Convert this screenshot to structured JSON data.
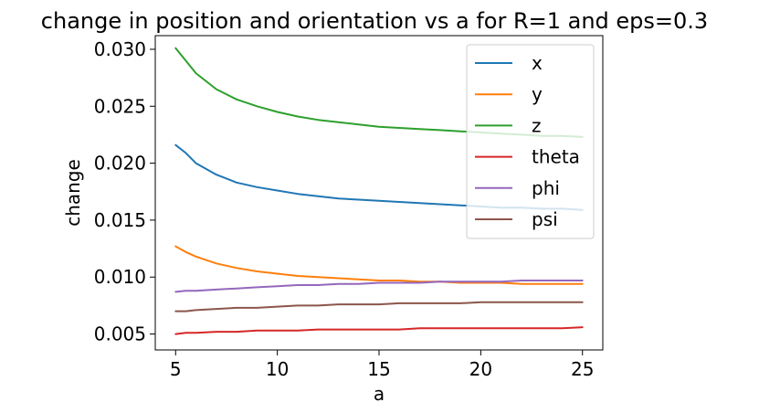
{
  "chart_data": {
    "type": "line",
    "title": "change in position and orientation vs a for R=1 and eps=0.3",
    "xlabel": "a",
    "ylabel": "change",
    "xlim": [
      4.0,
      26.0
    ],
    "ylim": [
      0.0036,
      0.0312
    ],
    "xticks": [
      5,
      10,
      15,
      20,
      25
    ],
    "xtick_labels": [
      "5",
      "10",
      "15",
      "20",
      "25"
    ],
    "yticks": [
      0.005,
      0.01,
      0.015,
      0.02,
      0.025,
      0.03
    ],
    "ytick_labels": [
      "0.005",
      "0.010",
      "0.015",
      "0.020",
      "0.025",
      "0.030"
    ],
    "grid": false,
    "legend_position": "top-right",
    "x": [
      5,
      5.5,
      6,
      7,
      8,
      9,
      10,
      11,
      12,
      13,
      14,
      15,
      16,
      17,
      18,
      19,
      20,
      21,
      22,
      23,
      24,
      25
    ],
    "series": [
      {
        "name": "x",
        "color": "#1f77b4",
        "values": [
          0.0216,
          0.0209,
          0.02,
          0.019,
          0.0183,
          0.0179,
          0.0176,
          0.0173,
          0.0171,
          0.0169,
          0.0168,
          0.0167,
          0.0166,
          0.0165,
          0.0164,
          0.0163,
          0.0162,
          0.0161,
          0.0161,
          0.016,
          0.016,
          0.0159
        ]
      },
      {
        "name": "y",
        "color": "#ff7f0e",
        "values": [
          0.0127,
          0.0122,
          0.0118,
          0.0112,
          0.0108,
          0.0105,
          0.0103,
          0.0101,
          0.01,
          0.0099,
          0.0098,
          0.0097,
          0.0097,
          0.0096,
          0.0096,
          0.0095,
          0.0095,
          0.0095,
          0.0094,
          0.0094,
          0.0094,
          0.0094
        ]
      },
      {
        "name": "z",
        "color": "#2ca02c",
        "values": [
          0.0301,
          0.029,
          0.0279,
          0.0265,
          0.0256,
          0.025,
          0.0245,
          0.0241,
          0.0238,
          0.0236,
          0.0234,
          0.0232,
          0.0231,
          0.023,
          0.0229,
          0.0228,
          0.0227,
          0.0226,
          0.0225,
          0.0224,
          0.0224,
          0.0223
        ]
      },
      {
        "name": "theta",
        "color": "#d62728",
        "values": [
          0.005,
          0.0051,
          0.0051,
          0.0052,
          0.0052,
          0.0053,
          0.0053,
          0.0053,
          0.0054,
          0.0054,
          0.0054,
          0.0054,
          0.0054,
          0.0055,
          0.0055,
          0.0055,
          0.0055,
          0.0055,
          0.0055,
          0.0055,
          0.0055,
          0.0056
        ]
      },
      {
        "name": "phi",
        "color": "#9467bd",
        "values": [
          0.0087,
          0.0088,
          0.0088,
          0.0089,
          0.009,
          0.0091,
          0.0092,
          0.0093,
          0.0093,
          0.0094,
          0.0094,
          0.0095,
          0.0095,
          0.0095,
          0.0096,
          0.0096,
          0.0096,
          0.0096,
          0.0097,
          0.0097,
          0.0097,
          0.0097
        ]
      },
      {
        "name": "psi",
        "color": "#8c564b",
        "values": [
          0.007,
          0.007,
          0.0071,
          0.0072,
          0.0073,
          0.0073,
          0.0074,
          0.0075,
          0.0075,
          0.0076,
          0.0076,
          0.0076,
          0.0077,
          0.0077,
          0.0077,
          0.0077,
          0.0078,
          0.0078,
          0.0078,
          0.0078,
          0.0078,
          0.0078
        ]
      }
    ]
  }
}
